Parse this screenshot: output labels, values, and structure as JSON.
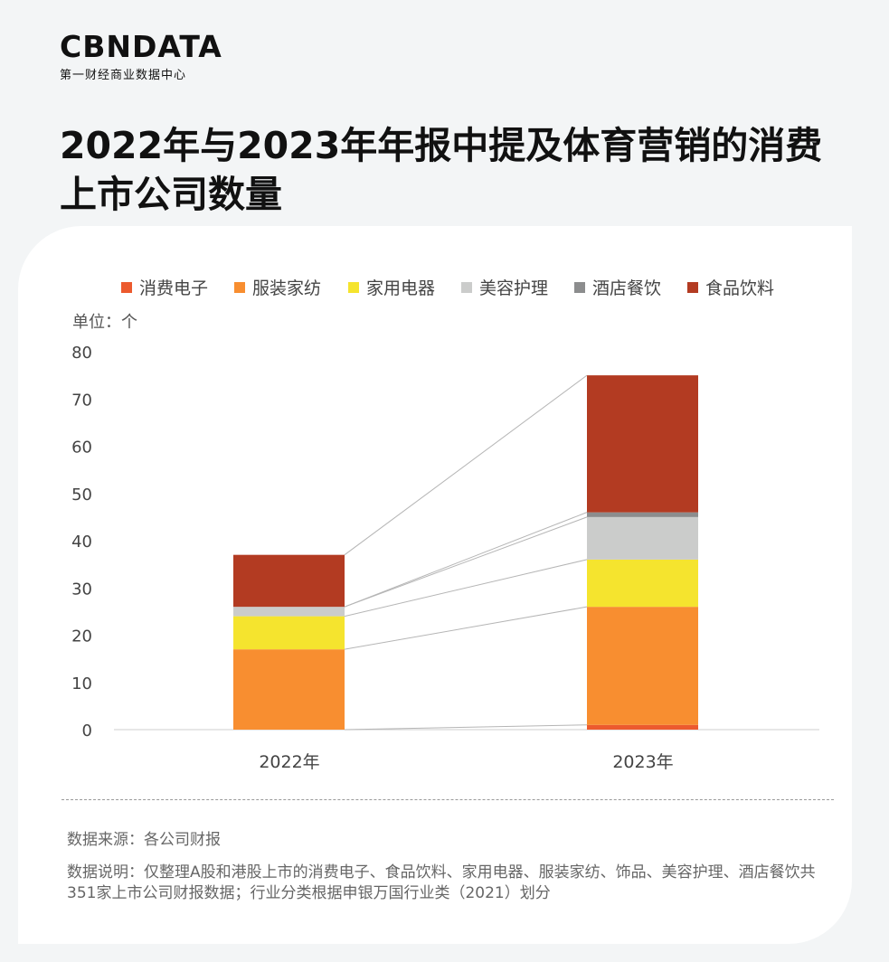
{
  "brand": {
    "name": "CBNDATA",
    "tagline": "第一财经商业数据中心"
  },
  "title": "2022年与2023年年报中提及体育营销的消费上市公司数量",
  "unit_label": "单位：个",
  "source": "数据来源：各公司财报",
  "note": "数据说明：仅整理A股和港股上市的消费电子、食品饮料、家用电器、服装家纺、饰品、美容护理、酒店餐饮共351家上市公司财报数据；行业分类根据申银万国行业类（2021）划分",
  "chart_data": {
    "type": "bar",
    "stacked": true,
    "categories": [
      "2022年",
      "2023年"
    ],
    "series": [
      {
        "name": "消费电子",
        "color": "#ec5a2e",
        "values": [
          0,
          1
        ]
      },
      {
        "name": "服装家纺",
        "color": "#f88e30",
        "values": [
          17,
          25
        ]
      },
      {
        "name": "家用电器",
        "color": "#f5e42e",
        "values": [
          7,
          10
        ]
      },
      {
        "name": "美容护理",
        "color": "#cbcccb",
        "values": [
          2,
          9
        ]
      },
      {
        "name": "酒店餐饮",
        "color": "#8c8d8e",
        "values": [
          0,
          1
        ]
      },
      {
        "name": "食品饮料",
        "color": "#b33b22",
        "values": [
          11,
          29
        ]
      }
    ],
    "ylim": [
      0,
      80
    ],
    "yticks": [
      0,
      10,
      20,
      30,
      40,
      50,
      60,
      70,
      80
    ],
    "ylabel": "单位：个",
    "legend": "top",
    "grid": false,
    "connector_lines": true
  }
}
